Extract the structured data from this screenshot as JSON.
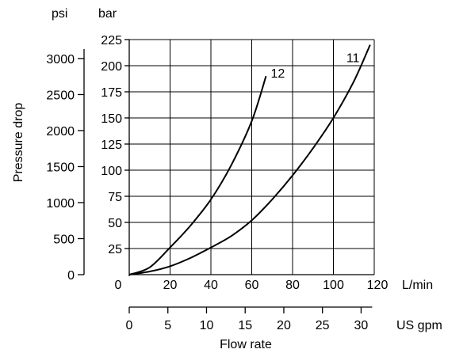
{
  "chart_data": {
    "type": "line",
    "xlabel": "Flow rate",
    "ylabel": "Pressure drop",
    "x_primary": {
      "unit": "L/min",
      "ticks": [
        0,
        20,
        40,
        60,
        80,
        100,
        120
      ],
      "range": [
        0,
        120
      ]
    },
    "x_secondary": {
      "unit": "US gpm",
      "ticks": [
        0,
        5,
        10,
        15,
        20,
        25,
        30
      ]
    },
    "y_primary": {
      "unit": "bar",
      "ticks": [
        25,
        50,
        75,
        100,
        125,
        150,
        175,
        200,
        225
      ],
      "range": [
        0,
        225
      ]
    },
    "y_secondary": {
      "unit": "psi",
      "ticks": [
        0,
        500,
        1000,
        1500,
        2000,
        2500,
        3000
      ]
    },
    "grid": true,
    "series": [
      {
        "name": "12",
        "x": [
          0,
          10,
          20,
          30,
          40,
          50,
          60,
          67
        ],
        "y": [
          0,
          7,
          26,
          47,
          72,
          105,
          147,
          190
        ]
      },
      {
        "name": "11",
        "x": [
          0,
          10,
          20,
          30,
          40,
          50,
          60,
          70,
          80,
          90,
          100,
          110,
          118
        ],
        "y": [
          0,
          3,
          8,
          16,
          26,
          37,
          52,
          72,
          95,
          121,
          150,
          185,
          220
        ]
      }
    ]
  }
}
